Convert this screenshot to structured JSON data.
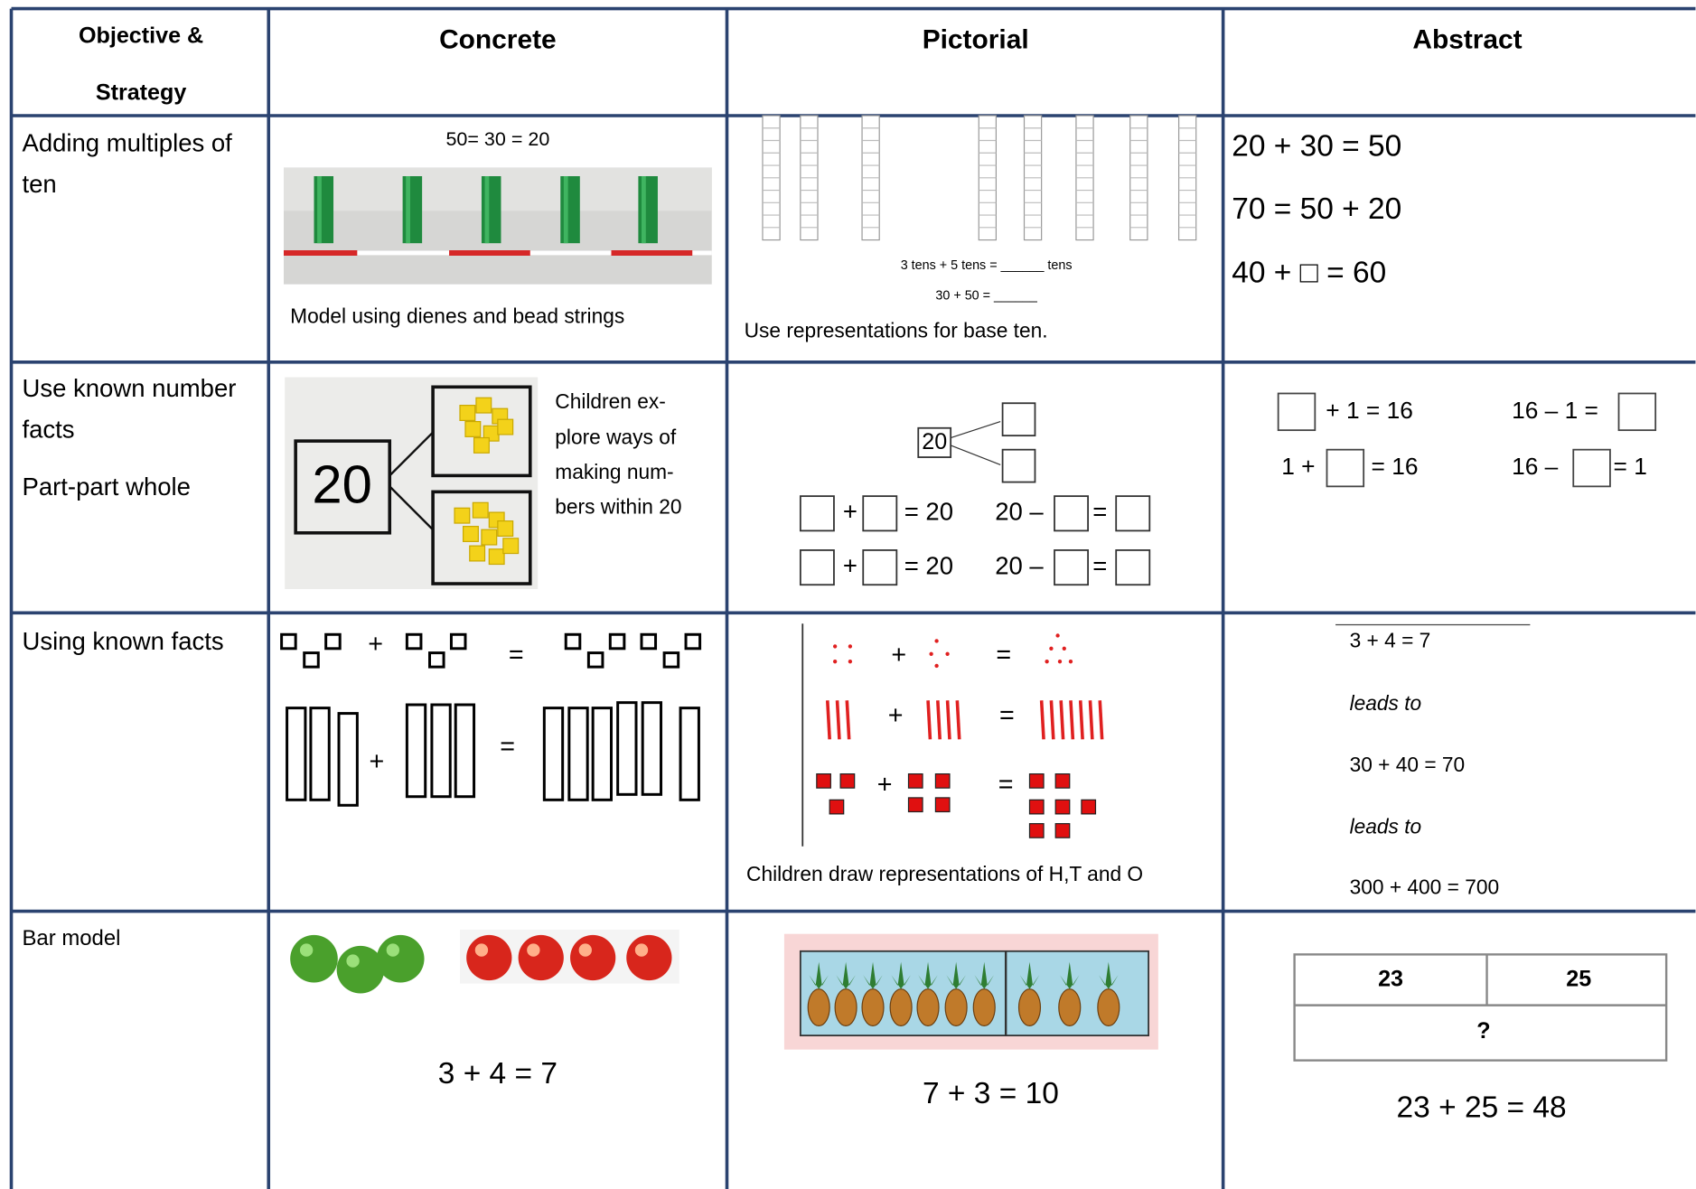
{
  "table": {
    "header": {
      "objective": [
        "Objective &",
        "Strategy"
      ],
      "concrete": "Concrete",
      "pictorial": "Pictorial",
      "abstract": "Abstract"
    },
    "rows": [
      {
        "objective": [
          "Adding multiples of",
          "ten"
        ],
        "concrete": {
          "equation": "50= 30 = 20",
          "caption": "Model using dienes and bead strings"
        },
        "pictorial": {
          "image_text": [
            "3 tens + 5 tens = ______ tens",
            "30 + 50 = ______"
          ],
          "caption": "Use representations for base ten."
        },
        "abstract": {
          "lines": [
            "20 + 30 = 50",
            "70 = 50 + 20",
            "40 + □ = 60"
          ]
        }
      },
      {
        "objective": [
          "Use known number",
          "facts"
        ],
        "strategy": "Part-part whole",
        "concrete": {
          "image_text": "20",
          "caption": [
            "Children ex-",
            "plore ways of",
            "making num-",
            "bers within 20"
          ]
        },
        "pictorial": {
          "whole": "20",
          "equations": [
            [
              "+",
              "= 20",
              "20 –",
              "="
            ],
            [
              "+",
              "= 20",
              "20 –",
              "="
            ]
          ]
        },
        "abstract": {
          "equations": [
            [
              "+ 1 = 16",
              "16 – 1 ="
            ],
            [
              "1 +",
              "= 16",
              "16 –",
              "= 1"
            ]
          ]
        }
      },
      {
        "objective": [
          "Using known facts"
        ],
        "concrete": {
          "operators": [
            [
              "+",
              "="
            ],
            [
              "+",
              "="
            ]
          ]
        },
        "pictorial": {
          "operators": [
            [
              "+",
              "="
            ],
            [
              "+",
              "="
            ],
            [
              "+",
              "="
            ]
          ],
          "caption": "Children draw representations of H,T and O"
        },
        "abstract": {
          "lines": [
            "3 + 4 = 7",
            "leads to",
            "30 + 40 = 70",
            "leads to",
            "300 + 400 = 700"
          ]
        }
      },
      {
        "objective": [
          "Bar model"
        ],
        "concrete": {
          "equation": "3 + 4 = 7"
        },
        "pictorial": {
          "equation": "7 + 3 = 10"
        },
        "abstract": {
          "bar_labels": [
            "23",
            "25",
            "?"
          ],
          "equation": "23 + 25 = 48"
        }
      }
    ]
  }
}
